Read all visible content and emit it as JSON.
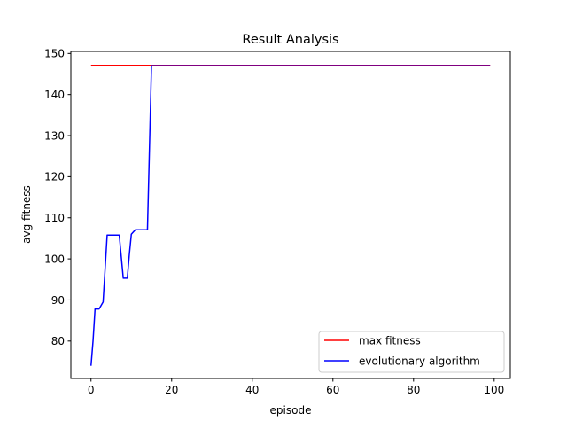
{
  "chart_data": {
    "type": "line",
    "title": "Result Analysis",
    "xlabel": "episode",
    "ylabel": "avg fitness",
    "xlim": [
      -5,
      104
    ],
    "ylim": [
      70.9,
      150.5
    ],
    "xticks": [
      0,
      20,
      40,
      60,
      80,
      100
    ],
    "yticks": [
      80,
      90,
      100,
      110,
      120,
      130,
      140,
      150
    ],
    "grid": false,
    "legend_position": "lower-right",
    "series": [
      {
        "name": "max fitness",
        "color": "#ff0000",
        "points": [
          [
            0,
            147.1
          ],
          [
            99,
            147.1
          ]
        ]
      },
      {
        "name": "evolutionary algorithm",
        "color": "#0000ff",
        "points": [
          [
            0,
            74.0
          ],
          [
            0.5,
            80.0
          ],
          [
            1,
            87.8
          ],
          [
            2,
            87.8
          ],
          [
            3,
            89.5
          ],
          [
            4,
            105.8
          ],
          [
            5,
            105.8
          ],
          [
            6,
            105.8
          ],
          [
            7,
            105.8
          ],
          [
            8,
            95.3
          ],
          [
            9,
            95.3
          ],
          [
            9.5,
            101.0
          ],
          [
            10,
            106.0
          ],
          [
            11,
            107.1
          ],
          [
            12,
            107.1
          ],
          [
            13,
            107.1
          ],
          [
            14,
            107.1
          ],
          [
            15,
            147.0
          ],
          [
            20,
            147.0
          ],
          [
            40,
            147.0
          ],
          [
            60,
            147.0
          ],
          [
            80,
            147.0
          ],
          [
            99,
            147.0
          ]
        ]
      }
    ]
  }
}
